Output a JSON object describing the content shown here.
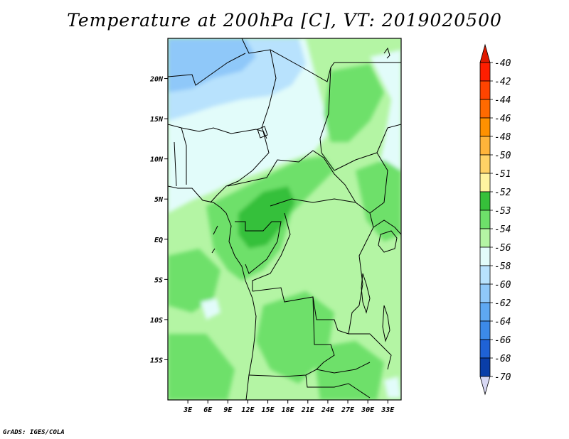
{
  "title": "Temperature at 200hPa [C], VT: 2019020500",
  "credit": "GrADS: IGES/COLA",
  "map": {
    "lon_range": [
      0,
      35
    ],
    "lat_range": [
      -20,
      25
    ],
    "x_ticks": [
      {
        "lon": 3,
        "label": "3E"
      },
      {
        "lon": 6,
        "label": "6E"
      },
      {
        "lon": 9,
        "label": "9E"
      },
      {
        "lon": 12,
        "label": "12E"
      },
      {
        "lon": 15,
        "label": "15E"
      },
      {
        "lon": 18,
        "label": "18E"
      },
      {
        "lon": 21,
        "label": "21E"
      },
      {
        "lon": 24,
        "label": "24E"
      },
      {
        "lon": 27,
        "label": "27E"
      },
      {
        "lon": 30,
        "label": "30E"
      },
      {
        "lon": 33,
        "label": "33E"
      }
    ],
    "y_ticks": [
      {
        "lat": 20,
        "label": "20N"
      },
      {
        "lat": 15,
        "label": "15N"
      },
      {
        "lat": 10,
        "label": "10N"
      },
      {
        "lat": 5,
        "label": "5N"
      },
      {
        "lat": 0,
        "label": "EQ"
      },
      {
        "lat": -5,
        "label": "5S"
      },
      {
        "lat": -10,
        "label": "10S"
      },
      {
        "lat": -15,
        "label": "15S"
      }
    ]
  },
  "colorbar": {
    "levels": [
      "-40",
      "-42",
      "-44",
      "-46",
      "-48",
      "-50",
      "-51",
      "-52",
      "-53",
      "-54",
      "-56",
      "-58",
      "-60",
      "-62",
      "-64",
      "-66",
      "-68",
      "-70"
    ],
    "colors": [
      "#ff1e00",
      "#ff4400",
      "#ff6a00",
      "#ff9100",
      "#ffb43a",
      "#ffd266",
      "#fff4a0",
      "#36c03a",
      "#6ee06a",
      "#b4f5a4",
      "#e2fcfa",
      "#b8e2fd",
      "#8fc8f9",
      "#5ea8f2",
      "#3c8ae8",
      "#1f62d6",
      "#0a3ea8",
      "#06147a"
    ],
    "top_arrow_color": "#e01a00",
    "bottom_arrow_color": "#d8d8f4"
  }
}
